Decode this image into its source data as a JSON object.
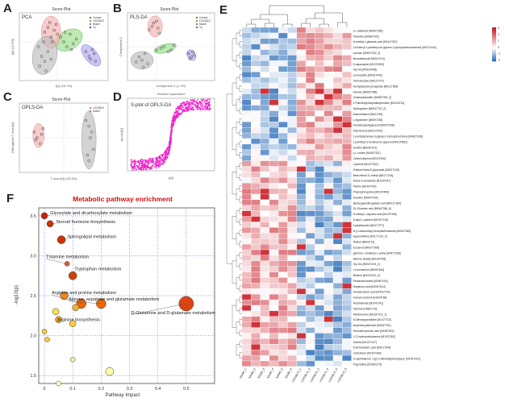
{
  "panels": {
    "A": {
      "letter": "A",
      "title": "Score Plot",
      "tag": "PCA",
      "xlabel": "t[1] (23.7%)",
      "ylabel": "t[2] (12.5%)",
      "legend": [
        "Control",
        "LO/GBLO",
        "Model",
        "Tp"
      ],
      "colors": {
        "Control": "#33aa33",
        "LO/GBLO": "#e07070",
        "Model": "#888888",
        "Tp": "#6a5acd"
      }
    },
    "B": {
      "letter": "B",
      "title": "Score Plot",
      "tag": "PLS-DA",
      "xlabel": "Component 1 (1.7%)",
      "ylabel": "Component 2",
      "legend": [
        "Control",
        "LO/GBLO",
        "Model",
        "Tp"
      ]
    },
    "C": {
      "letter": "C",
      "title": "Score Plot",
      "tag": "OPLS-DA",
      "xlabel": "T score[1] (23.3%)",
      "ylabel": "Orthogonal T score[1]",
      "legend": [
        "LO/GBLO",
        "Model"
      ]
    },
    "D": {
      "letter": "D",
      "title": "S-plot of OPLS-DA",
      "xlabel": "p[1]",
      "ylabel": "p(corr)[1]",
      "top_label": "Feature importance"
    },
    "E": {
      "letter": "E",
      "columns": [
        "Model_1",
        "Model_2",
        "Model_3",
        "Model_4",
        "Model_5",
        "Model_6",
        "LO/GBLO_1",
        "LO/GBLO_2",
        "LO/GBLO_3",
        "LO/GBLO_4",
        "LO/GBLO_5",
        "LO/GBLO_6"
      ],
      "scale": [
        "3",
        "2",
        "1",
        "0",
        "-1",
        "-2"
      ],
      "rows": [
        "γ-L-alkaloids [M0007356]",
        "Thiamine [M0087342]",
        "N-methyl-L-glutamic acid [M1447307]",
        "2-linoleoyl-1-palmitoyl-sn-glycero-3-phosphoethanolamine [M1671444]",
        "Lactose [M0057332_2]",
        "Benzaldehyde [M0047474]",
        "D-asparagine [M1237690]",
        "Gly-His [M0187498]",
        "Leukocytine [M0157043]",
        "Tanreductase [M0127727]",
        "Nortryptophan phosphate [M0127359]",
        "Hat-Glu [M0057465]",
        "Octanoylcarnitine [M0087302_2]",
        "1-Palmitoylphosphatidylcholine [M1316716]",
        "Sphinganine [M0047732_2]",
        "Aminoethanol [M047245]",
        "L-tryptamine [M0097246]",
        "Hexadecylpolyglycerol [M0047258]",
        "Tabersonine [M0127225]",
        "1-pentadecanoyl-sn-glycero-3-phosphocholine [M4627168]",
        "1-palmitoyl-2-linolenyl-sn-glycerol [M0137581]",
        "Sorbitol [M0087101]",
        "γ-L-uridine [M0337331]",
        "Catecholamine [M0047406]",
        "Cysteine [M1147332]",
        "Oxidized beta-D-glucoside [M2517126]",
        "Beta-retinal 11-retinal [M0177218]",
        "Indole-3-acetamide [M1157337]",
        "Pterine [M0147402]",
        "Phytosphingosine [M0197466]",
        "Guanine [M0047164]",
        "alpha-guanidinoglutaric acid [M0127334]",
        "DL-Glutamic acid [M0467384_6]",
        "N-methyl-L-aspartic acid [M1497186]",
        "S-allyl-L-cysteine [M1027126]",
        "Cystathionate [M0477377]",
        "N-(2-aminoethyl)-benzylsulfonamide [M2527365]",
        "Hypoxanthine [M1177134_3]",
        "Retinol [M009711]",
        "Icosanoid [M0077306]",
        "gamma-L-Glutamyl-L-valine [M0477268]",
        "Alanine-dealkyl [M1187408]",
        "Gly-Glu [M0007403_2]",
        "L-homoserine [M0057464]",
        "Betaine [M1167204_3]",
        "Pentasaccharide [M0067004]",
        "Heptanoic acid [M0047614]",
        "Hexadecanoic acid [H0037376]",
        "Fumaric acid-d4 [H2009796]",
        "Nicotinamide [M1047241]",
        "Pyridine [H0687702]",
        "Nitrobenzene [M1167373_1]",
        "N-Nitrosopyrrolidine [M1477372]",
        "Isopentenyladenine [M0047761]",
        "Taurodeoxycholic acid [M1087631]",
        "1-O-hydroxyethylamine [M1037302]",
        "Dulcitol [M1207147]",
        "5-aminovaleric acid [M1017644]",
        "Carbofuran [M1347303]",
        "2-naphthalenol, 1-[(2,4-dimethylphenyl)azo]- [M1097323]",
        "Trigonelline [M1687274]"
      ]
    },
    "F": {
      "letter": "F",
      "title": "Metabolic pathway enrichment",
      "xlabel": "Pathway Impact",
      "ylabel": "-log10(p)",
      "annotations": [
        "Glyoxylate and dicarboxylate metabolism",
        "Steroid hormone biosynthesis",
        "Sphingolipid metabolism",
        "Thiamine metabolism",
        "Tryptophan metabolism",
        "Arginine and proline metabolism",
        "Alanine, aspartate and glutamate metabolism",
        "Arginine biosynthesis",
        "D-Glutamine and D-glutamate metabolism"
      ]
    }
  },
  "chart_data": [
    {
      "type": "scatter",
      "title": "Score Plot",
      "tag": "PCA",
      "xlabel": "t[1] (23.7%)",
      "ylabel": "t[2] (12.5%)",
      "xlim": [
        -60,
        80
      ],
      "ylim": [
        -40,
        30
      ],
      "series": [
        {
          "name": "Control",
          "x": [
            5,
            10,
            15,
            20,
            25,
            30,
            22,
            12
          ],
          "y": [
            5,
            0,
            -5,
            8,
            -2,
            3,
            -8,
            10
          ]
        },
        {
          "name": "LO/GBLO",
          "x": [
            -20,
            -15,
            -10,
            -5,
            0,
            -12,
            -8,
            -2
          ],
          "y": [
            10,
            15,
            5,
            12,
            8,
            20,
            0,
            18
          ]
        },
        {
          "name": "Model",
          "x": [
            -30,
            -25,
            -20,
            -15,
            -28,
            -22,
            -18,
            -10
          ],
          "y": [
            -5,
            -15,
            -20,
            -10,
            -25,
            0,
            -30,
            -18
          ]
        },
        {
          "name": "Tp",
          "x": [
            45,
            50,
            55,
            60,
            52,
            58
          ],
          "y": [
            -10,
            -15,
            -8,
            -20,
            -18,
            -12
          ]
        }
      ]
    },
    {
      "type": "scatter",
      "title": "Score Plot",
      "tag": "PLS-DA",
      "xlabel": "Component 1 (1.7%)",
      "ylabel": "Component 2",
      "xlim": [
        -20,
        40
      ],
      "ylim": [
        -20,
        20
      ],
      "series": [
        {
          "name": "Control",
          "x": [
            0,
            3,
            5,
            8,
            10,
            12
          ],
          "y": [
            -2,
            -1,
            0,
            -3,
            -2,
            1
          ]
        },
        {
          "name": "LO/GBLO",
          "x": [
            -5,
            -3,
            0,
            2,
            -2,
            1
          ],
          "y": [
            10,
            12,
            15,
            8,
            14,
            11
          ]
        },
        {
          "name": "Model",
          "x": [
            -12,
            -10,
            -8,
            -6,
            -14,
            -9
          ],
          "y": [
            -6,
            -8,
            -4,
            -10,
            -9,
            -12
          ]
        },
        {
          "name": "Tp",
          "x": [
            22,
            24,
            26,
            25,
            23
          ],
          "y": [
            -4,
            -6,
            -5,
            -3,
            -7
          ]
        }
      ]
    },
    {
      "type": "scatter",
      "title": "Score Plot",
      "tag": "OPLS-DA",
      "xlabel": "T score[1] (23.3%)",
      "ylabel": "Orthogonal T score[1]",
      "xlim": [
        -30,
        30
      ],
      "ylim": [
        -30,
        30
      ],
      "series": [
        {
          "name": "LO/GBLO",
          "x": [
            -20,
            -18,
            -16,
            -14,
            -19,
            -15
          ],
          "y": [
            5,
            0,
            -5,
            8,
            -2,
            3
          ]
        },
        {
          "name": "Model",
          "x": [
            15,
            17,
            18,
            20,
            16,
            19,
            17
          ],
          "y": [
            15,
            10,
            0,
            -10,
            -15,
            5,
            -20
          ]
        }
      ]
    },
    {
      "type": "scatter",
      "title": "S-plot of OPLS-DA",
      "xlabel": "p[1]",
      "ylabel": "p(corr)[1]",
      "xlim": [
        -0.15,
        0.15
      ],
      "ylim": [
        -1,
        1
      ]
    },
    {
      "type": "scatter",
      "title": "Metabolic pathway enrichment",
      "xlabel": "Pathway Impact",
      "ylabel": "-log10(p)",
      "xlim": [
        -0.02,
        0.6
      ],
      "ylim": [
        1.4,
        3.6
      ],
      "series": [
        {
          "name": "pathways",
          "x": [
            0.0,
            0.02,
            0.06,
            0.08,
            0.1,
            0.13,
            0.2,
            0.05,
            0.5,
            0.0,
            0.01,
            0.04,
            0.1,
            0.05,
            0.23,
            0.1,
            0.07,
            0.11
          ],
          "y": [
            3.5,
            3.4,
            3.2,
            2.9,
            2.75,
            2.4,
            2.4,
            2.2,
            2.4,
            2.05,
            1.95,
            2.3,
            1.7,
            1.4,
            1.55,
            2.15,
            2.5,
            2.35
          ],
          "size": [
            4,
            4,
            5,
            3,
            5,
            6,
            6,
            4,
            9,
            3,
            3,
            4,
            3,
            3,
            5,
            4,
            5,
            4
          ],
          "color": [
            "#cc2200",
            "#cc3300",
            "#cc3300",
            "#e06030",
            "#cc4400",
            "#ee6600",
            "#ee6600",
            "#f0a020",
            "#dd4411",
            "#ffcc33",
            "#ffcc33",
            "#ffdd55",
            "#ffee99",
            "#ffffcc",
            "#ffffaa",
            "#ffcc33",
            "#ee8822",
            "#f0b030"
          ]
        }
      ]
    }
  ]
}
